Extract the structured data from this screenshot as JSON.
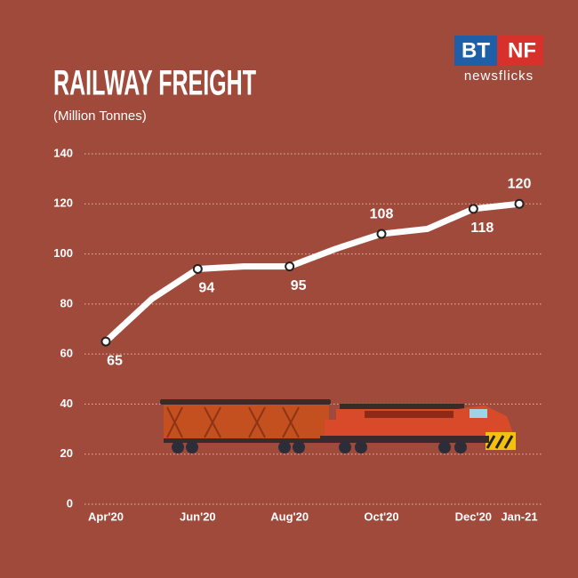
{
  "chart_data": {
    "type": "line",
    "title": "RAILWAY FREIGHT",
    "subtitle": "(Million Tonnes)",
    "categories": [
      "Apr'20",
      null,
      "Jun'20",
      null,
      "Aug'20",
      null,
      "Oct'20",
      null,
      "Dec'20",
      "Jan-21"
    ],
    "values": [
      65,
      82,
      94,
      95,
      95,
      102,
      108,
      110,
      118,
      120
    ],
    "color": "#ffffff",
    "ylim": [
      0,
      140
    ],
    "yticks": [
      0,
      20,
      40,
      60,
      80,
      100,
      120,
      140
    ],
    "grid": true
  },
  "logo": {
    "left": "BT",
    "right": "NF",
    "tagline": "newsflicks"
  }
}
